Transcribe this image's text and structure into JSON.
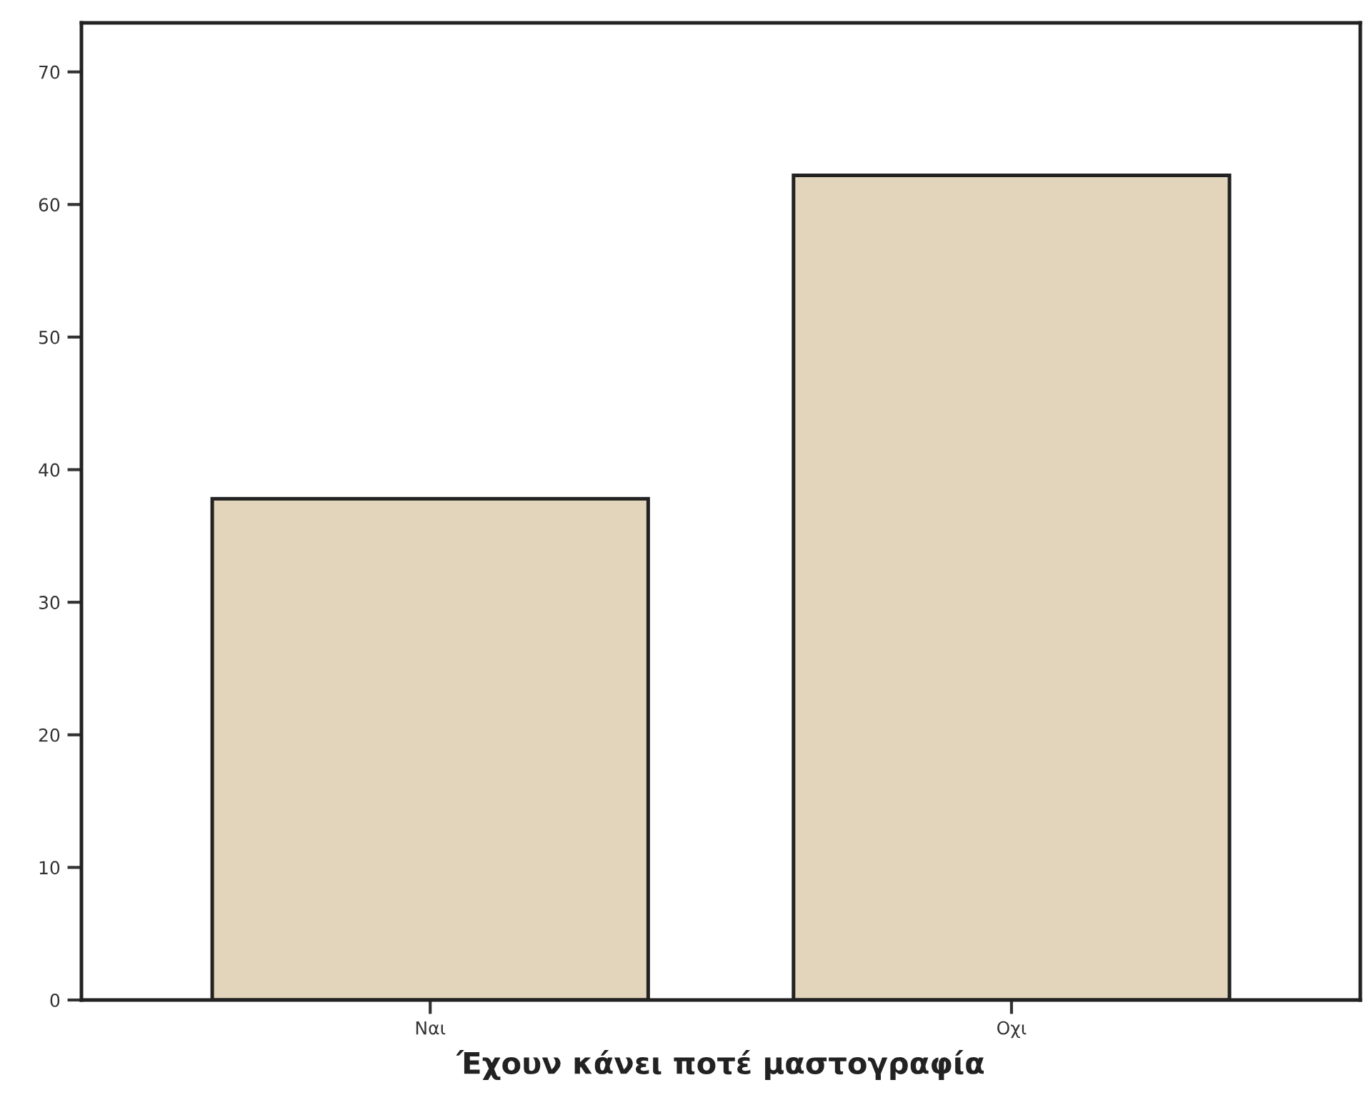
{
  "chart_data": {
    "type": "bar",
    "xlabel": "Έχουν κάνει ποτέ μαστογραφία",
    "categories": [
      "Ναι",
      "Οχι"
    ],
    "values": [
      37.8,
      62.2
    ],
    "color": "#e2d5bb",
    "ylim": [
      0,
      73.7
    ],
    "yticks": [
      0,
      10,
      20,
      30,
      40,
      50,
      60,
      70
    ],
    "grid": false
  }
}
